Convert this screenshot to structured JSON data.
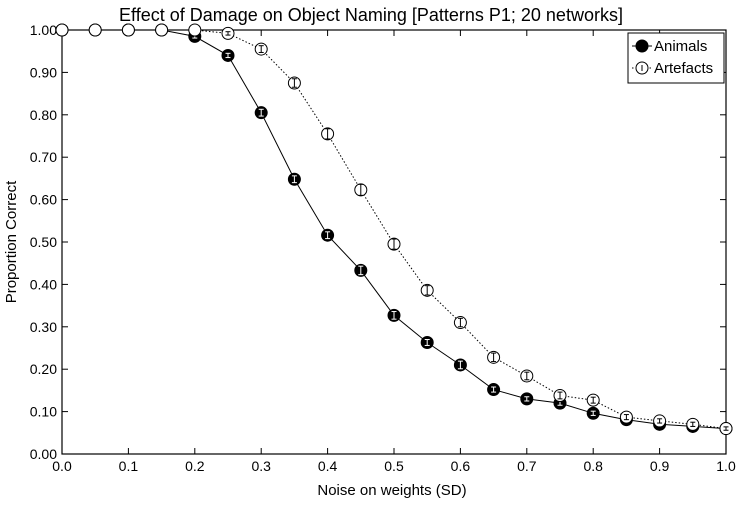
{
  "colors": {
    "background": "#ffffff",
    "ink": "#000000",
    "animals_marker": "#000000",
    "artefacts_marker": "#ffffff"
  },
  "chart_data": {
    "type": "line",
    "title": "Effect of Damage on Object Naming [Patterns P1; 20 networks]",
    "xlabel": "Noise on weights (SD)",
    "ylabel": "Proportion Correct",
    "xlim": [
      0.0,
      1.0
    ],
    "ylim": [
      0.0,
      1.0
    ],
    "x_ticks": [
      0.0,
      0.1,
      0.2,
      0.3,
      0.4,
      0.5,
      0.6,
      0.7,
      0.8,
      0.9,
      1.0
    ],
    "x_tick_labels": [
      "0.0",
      "0.1",
      "0.2",
      "0.3",
      "0.4",
      "0.5",
      "0.6",
      "0.7",
      "0.8",
      "0.9",
      "1.0"
    ],
    "y_ticks": [
      0.0,
      0.1,
      0.2,
      0.3,
      0.4,
      0.5,
      0.6,
      0.7,
      0.8,
      0.9,
      1.0
    ],
    "y_tick_labels": [
      "0.00",
      "0.10",
      "0.20",
      "0.30",
      "0.40",
      "0.50",
      "0.60",
      "0.70",
      "0.80",
      "0.90",
      "1.00"
    ],
    "grid": false,
    "legend_position": "top-right",
    "x": [
      0.0,
      0.05,
      0.1,
      0.15,
      0.2,
      0.25,
      0.3,
      0.35,
      0.4,
      0.45,
      0.5,
      0.55,
      0.6,
      0.65,
      0.7,
      0.75,
      0.8,
      0.85,
      0.9,
      0.95,
      1.0
    ],
    "series": [
      {
        "name": "Animals",
        "marker": "filled-circle",
        "line_style": "solid",
        "values": [
          1.0,
          1.0,
          1.0,
          1.0,
          0.985,
          0.94,
          0.805,
          0.648,
          0.516,
          0.433,
          0.327,
          0.263,
          0.21,
          0.152,
          0.13,
          0.12,
          0.096,
          0.081,
          0.07,
          0.065,
          0.06
        ],
        "errors": [
          0.0,
          0.0,
          0.0,
          0.0,
          0.004,
          0.005,
          0.008,
          0.008,
          0.008,
          0.01,
          0.009,
          0.007,
          0.009,
          0.006,
          0.005,
          0.005,
          0.005,
          0.004,
          0.004,
          0.004,
          0.003
        ]
      },
      {
        "name": "Artefacts",
        "marker": "open-circle",
        "line_style": "dotted",
        "values": [
          1.0,
          1.0,
          1.0,
          1.0,
          1.0,
          0.992,
          0.955,
          0.875,
          0.755,
          0.623,
          0.495,
          0.386,
          0.31,
          0.228,
          0.184,
          0.138,
          0.127,
          0.087,
          0.078,
          0.07,
          0.06
        ],
        "errors": [
          0.0,
          0.0,
          0.0,
          0.0,
          0.0,
          0.004,
          0.008,
          0.01,
          0.012,
          0.013,
          0.012,
          0.011,
          0.01,
          0.01,
          0.009,
          0.008,
          0.007,
          0.006,
          0.005,
          0.005,
          0.004
        ]
      }
    ]
  }
}
